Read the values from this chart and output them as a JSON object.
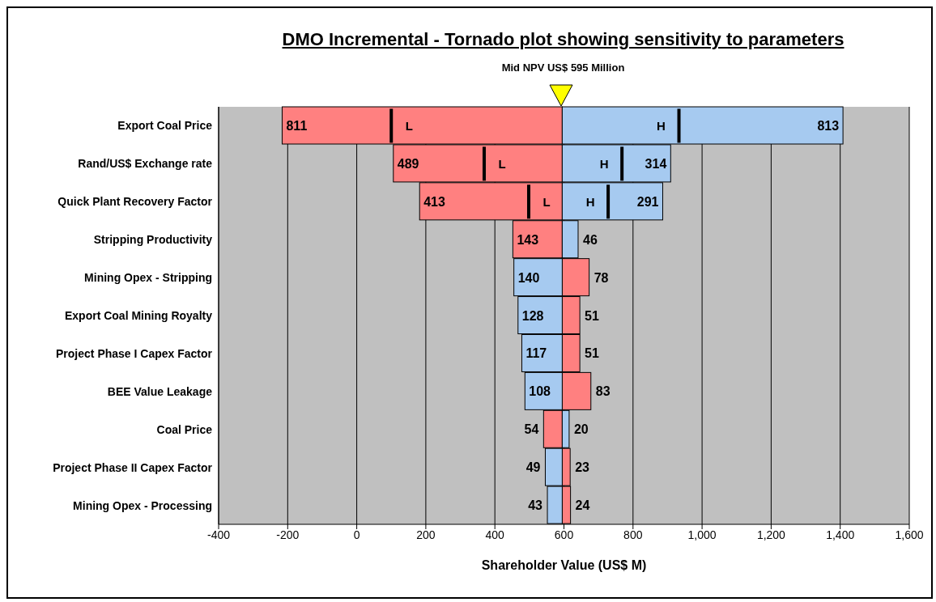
{
  "chart_data": {
    "type": "bar",
    "orientation": "horizontal",
    "title": "DMO Incremental - Tornado plot showing sensitivity to parameters",
    "subtitle": "Mid NPV US$ 595 Million",
    "xlabel": "Shareholder Value (US$ M)",
    "categories": [
      "Export Coal Price",
      "Rand/US$ Exchange rate",
      "Quick Plant Recovery Factor",
      "Stripping Productivity",
      "Mining Opex - Stripping",
      "Export Coal Mining Royalty",
      "Project Phase I Capex Factor",
      "BEE Value Leakage",
      "Coal Price",
      "Project Phase II Capex Factor",
      "Mining Opex - Processing"
    ],
    "series": [
      {
        "color": "#ff8080",
        "base": [
          -216,
          106,
          182,
          452,
          595,
          595,
          595,
          595,
          541,
          595,
          595
        ],
        "values": [
          811,
          489,
          413,
          143,
          78,
          51,
          51,
          83,
          54,
          23,
          24
        ]
      },
      {
        "color": "#a6caf0",
        "base": [
          595,
          595,
          595,
          595,
          455,
          467,
          478,
          487,
          595,
          546,
          552
        ],
        "values": [
          813,
          314,
          291,
          46,
          140,
          128,
          117,
          108,
          20,
          49,
          43
        ]
      }
    ],
    "annotations": [
      {
        "text": "L",
        "x": 100,
        "y": "Export Coal Price"
      },
      {
        "text": "H",
        "x": 933,
        "y": "Export Coal Price"
      },
      {
        "text": "L",
        "x": 369,
        "y": "Rand/US$ Exchange rate"
      },
      {
        "text": "H",
        "x": 768,
        "y": "Rand/US$ Exchange rate"
      },
      {
        "text": "L",
        "x": 498,
        "y": "Quick Plant Recovery Factor"
      },
      {
        "text": "H",
        "x": 728,
        "y": "Quick Plant Recovery Factor"
      }
    ],
    "xlim": [
      -400,
      1600
    ],
    "xticks": [
      -400,
      -200,
      0,
      200,
      400,
      600,
      800,
      {
        "value": 1000,
        "label": "1,000"
      },
      {
        "value": 1200,
        "label": "1,200"
      },
      {
        "value": 1400,
        "label": "1,400"
      },
      {
        "value": 1600,
        "label": "1,600"
      }
    ],
    "grid": "x",
    "data_labels": true,
    "legend": false
  }
}
